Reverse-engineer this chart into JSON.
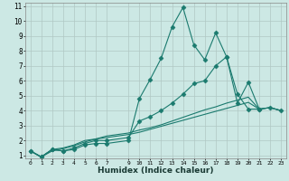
{
  "xlabel": "Humidex (Indice chaleur)",
  "bg_color": "#cce8e4",
  "grid_color": "#b0c8c4",
  "line_color": "#1a7a6e",
  "xlim": [
    -0.5,
    23.5
  ],
  "ylim": [
    0.8,
    11.2
  ],
  "xticks": [
    0,
    1,
    2,
    3,
    4,
    5,
    6,
    7,
    9,
    10,
    11,
    12,
    13,
    14,
    15,
    16,
    17,
    18,
    19,
    20,
    21,
    22,
    23
  ],
  "yticks": [
    1,
    2,
    3,
    4,
    5,
    6,
    7,
    8,
    9,
    10,
    11
  ],
  "lines": [
    {
      "x": [
        0,
        1,
        2,
        3,
        4,
        5,
        6,
        7,
        9,
        10,
        11,
        12,
        13,
        14,
        15,
        16,
        17,
        18,
        19,
        20,
        21
      ],
      "y": [
        1.3,
        0.9,
        1.4,
        1.3,
        1.4,
        1.7,
        1.8,
        1.8,
        2.0,
        4.8,
        6.1,
        7.5,
        9.6,
        10.9,
        8.4,
        7.4,
        9.2,
        7.6,
        5.1,
        4.1,
        4.1
      ],
      "marker": "D",
      "markersize": 2.5
    },
    {
      "x": [
        0,
        1,
        2,
        3,
        4,
        5,
        6,
        7,
        9,
        10,
        11,
        12,
        13,
        14,
        15,
        16,
        17,
        18,
        19,
        20,
        21,
        22,
        23
      ],
      "y": [
        1.3,
        0.9,
        1.4,
        1.3,
        1.5,
        1.8,
        2.0,
        2.0,
        2.2,
        3.3,
        3.6,
        4.0,
        4.5,
        5.1,
        5.8,
        6.0,
        7.0,
        7.6,
        4.5,
        5.9,
        4.1,
        4.2,
        4.0
      ],
      "marker": "D",
      "markersize": 2.5
    },
    {
      "x": [
        0,
        1,
        2,
        3,
        4,
        5,
        6,
        7,
        9,
        10,
        11,
        12,
        13,
        14,
        15,
        16,
        17,
        18,
        19,
        20,
        21,
        22,
        23
      ],
      "y": [
        1.3,
        0.9,
        1.4,
        1.5,
        1.7,
        2.0,
        2.1,
        2.3,
        2.5,
        2.7,
        2.85,
        3.05,
        3.3,
        3.55,
        3.8,
        4.05,
        4.25,
        4.5,
        4.7,
        4.9,
        4.1,
        4.2,
        4.0
      ],
      "marker": null,
      "markersize": 0
    },
    {
      "x": [
        0,
        1,
        2,
        3,
        4,
        5,
        6,
        7,
        9,
        10,
        11,
        12,
        13,
        14,
        15,
        16,
        17,
        18,
        19,
        20,
        21,
        22,
        23
      ],
      "y": [
        1.3,
        0.9,
        1.3,
        1.45,
        1.65,
        1.9,
        2.1,
        2.2,
        2.4,
        2.55,
        2.75,
        2.95,
        3.15,
        3.35,
        3.55,
        3.75,
        3.95,
        4.15,
        4.35,
        4.55,
        4.1,
        4.2,
        4.0
      ],
      "marker": null,
      "markersize": 0
    }
  ]
}
